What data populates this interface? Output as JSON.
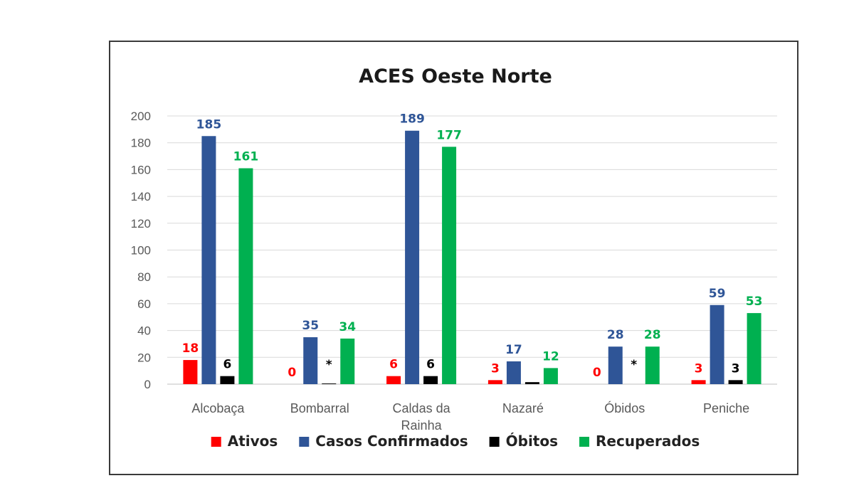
{
  "chart_data": {
    "type": "bar",
    "title": "ACES Oeste Norte",
    "xlabel": "",
    "ylabel": "",
    "ylim": [
      0,
      200
    ],
    "yticks": [
      0,
      20,
      40,
      60,
      80,
      100,
      120,
      140,
      160,
      180,
      200
    ],
    "grid": true,
    "legend_position": "bottom",
    "categories": [
      [
        "Alcobaça"
      ],
      [
        "Bombarral"
      ],
      [
        "Caldas da",
        "Rainha"
      ],
      [
        "Nazaré"
      ],
      [
        "Óbidos"
      ],
      [
        "Peniche"
      ]
    ],
    "series": [
      {
        "name": "Ativos",
        "color": "#ff0000",
        "values": [
          18,
          0,
          6,
          3,
          0,
          3
        ],
        "labels": [
          "18",
          "0",
          "6",
          "3",
          "0",
          "3"
        ]
      },
      {
        "name": "Casos Confirmados",
        "color": "#2f5597",
        "values": [
          185,
          35,
          189,
          17,
          28,
          59
        ],
        "labels": [
          "185",
          "35",
          "189",
          "17",
          "28",
          "59"
        ]
      },
      {
        "name": "Óbitos",
        "color": "#000000",
        "values": [
          6,
          0.5,
          6,
          1.5,
          0,
          3
        ],
        "labels": [
          "6",
          "*",
          "6",
          "",
          "*",
          "3"
        ]
      },
      {
        "name": "Recuperados",
        "color": "#00b050",
        "values": [
          161,
          34,
          177,
          12,
          28,
          53
        ],
        "labels": [
          "161",
          "34",
          "177",
          "12",
          "28",
          "53"
        ]
      }
    ]
  }
}
